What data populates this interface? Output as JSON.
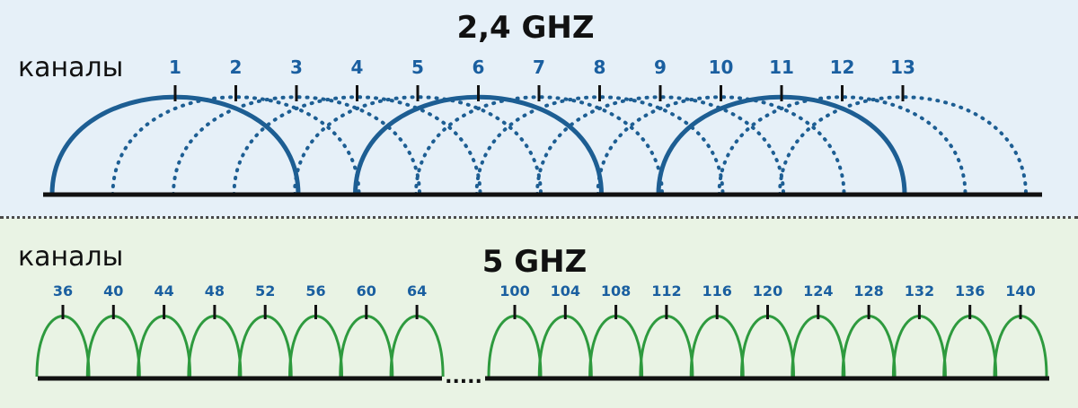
{
  "band24": {
    "title": "2,4 GHZ",
    "channels_label": "каналы",
    "channels": [
      "1",
      "2",
      "3",
      "4",
      "5",
      "6",
      "7",
      "8",
      "9",
      "10",
      "11",
      "12",
      "13"
    ],
    "highlighted_channels": [
      "1",
      "6",
      "11"
    ],
    "highlight_color": "#1d5e93",
    "other_color": "#1d5e93"
  },
  "band5": {
    "title": "5 GHZ",
    "channels_label": "каналы",
    "channels_group1": [
      "36",
      "40",
      "44",
      "48",
      "52",
      "56",
      "60",
      "64"
    ],
    "gap_marker": ".....",
    "channels_group2": [
      "100",
      "104",
      "108",
      "112",
      "116",
      "120",
      "124",
      "128",
      "132",
      "136",
      "140"
    ],
    "curve_color": "#2e9a3e"
  }
}
